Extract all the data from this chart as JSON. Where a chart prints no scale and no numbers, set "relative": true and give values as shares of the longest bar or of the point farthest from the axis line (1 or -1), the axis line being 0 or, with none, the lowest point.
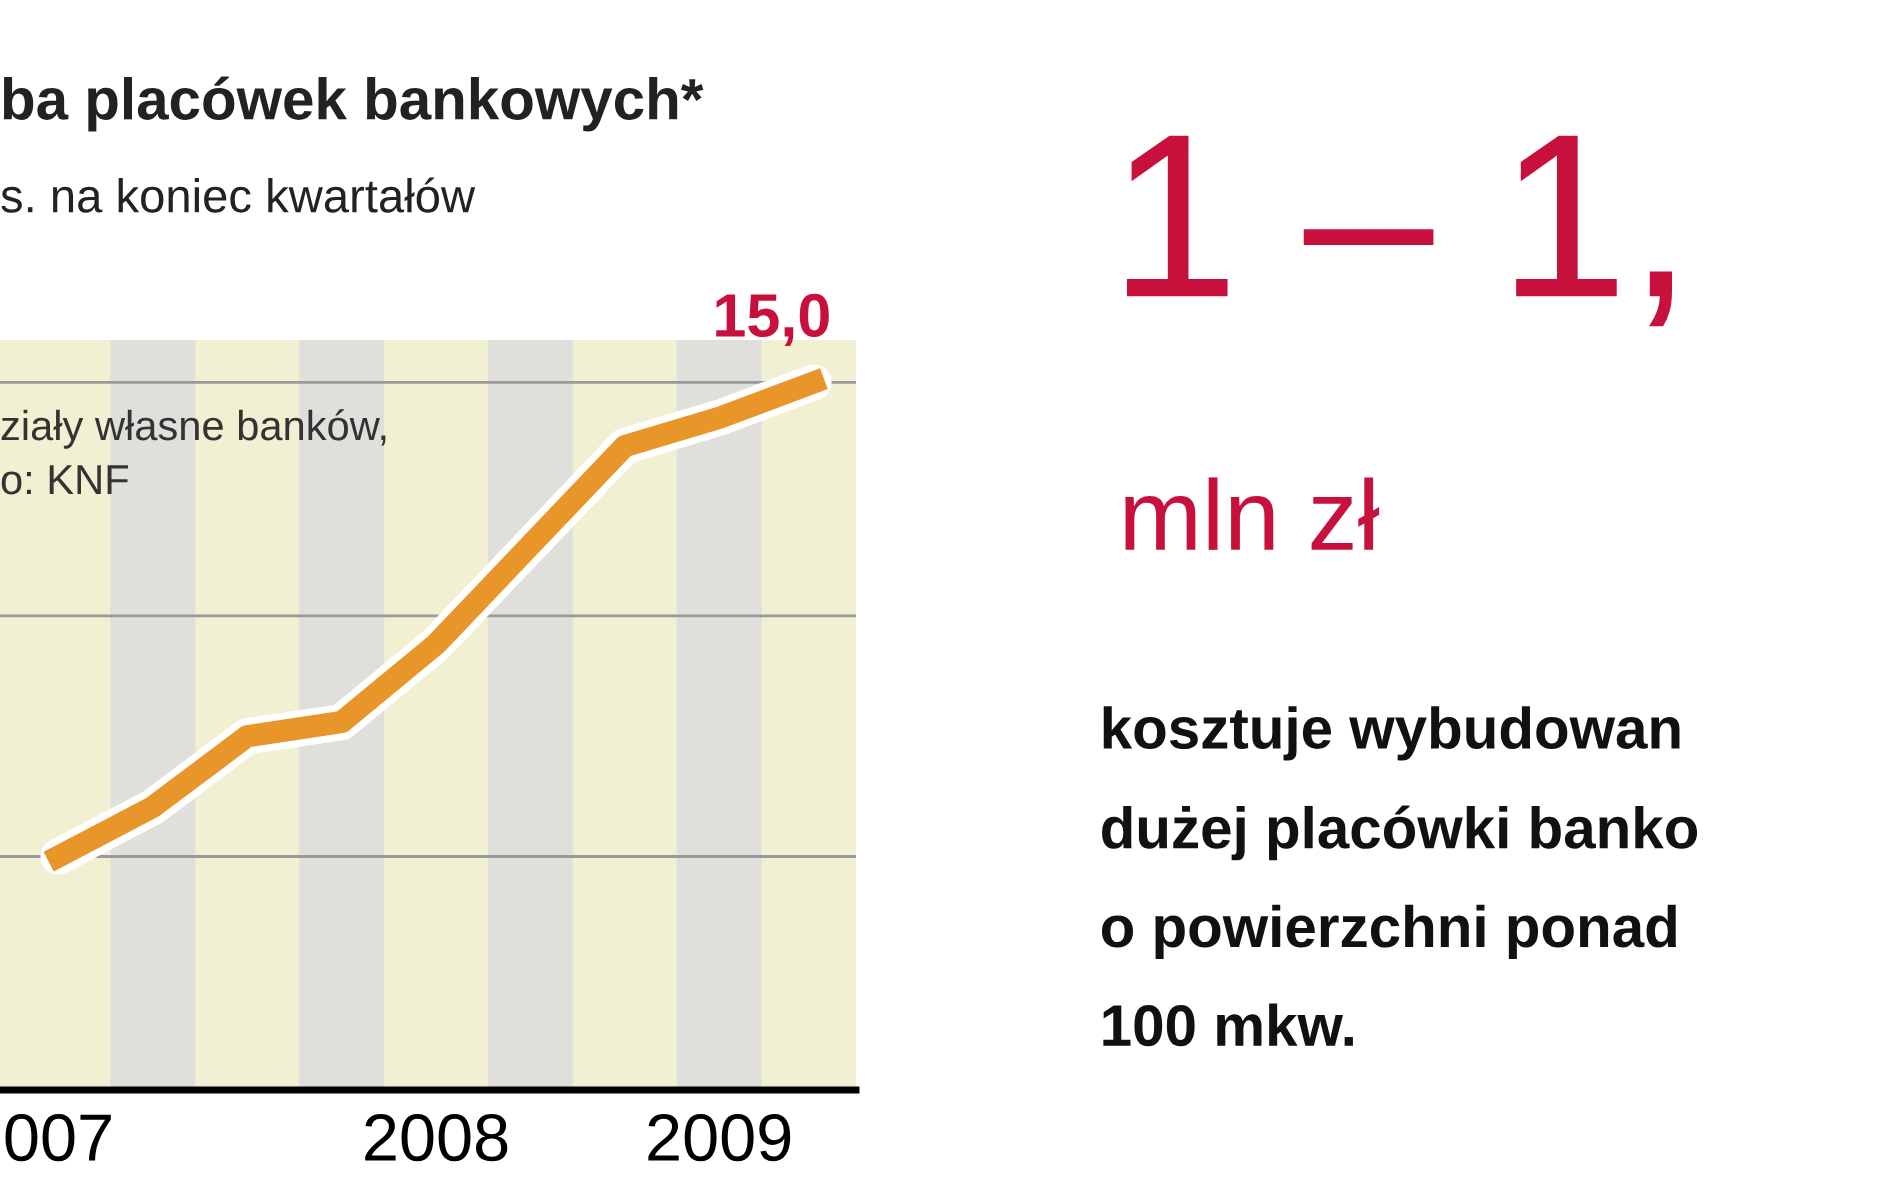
{
  "chart_data": {
    "type": "line",
    "title": "ba placówek bankowych*",
    "subtitle": "s. na koniec kwartałów",
    "categories": [
      "007",
      null,
      null,
      null,
      "2008",
      null,
      null,
      "2009",
      null
    ],
    "relative": true,
    "series": [
      {
        "color": "#e8962a",
        "values": [
          0.33,
          0.4,
          0.5,
          0.52,
          0.63,
          0.77,
          0.91,
          0.95,
          1.0
        ]
      }
    ],
    "ref_lines": [
      {
        "axis": "y",
        "value": 0.33,
        "color": "#9a9a9a"
      },
      {
        "axis": "y",
        "value": 0.67,
        "color": "#9a9a9a"
      },
      {
        "axis": "y",
        "value": 1.0,
        "color": "#9a9a9a"
      }
    ],
    "line_style": "solid",
    "annotations": [
      "15,0",
      "ziały własne banków,\no: KNF",
      "1 – 1,",
      "mln zł",
      "kosztuje wybudowan\ndużej placówki banko\no powierzchni ponad\n100 mkw."
    ]
  }
}
